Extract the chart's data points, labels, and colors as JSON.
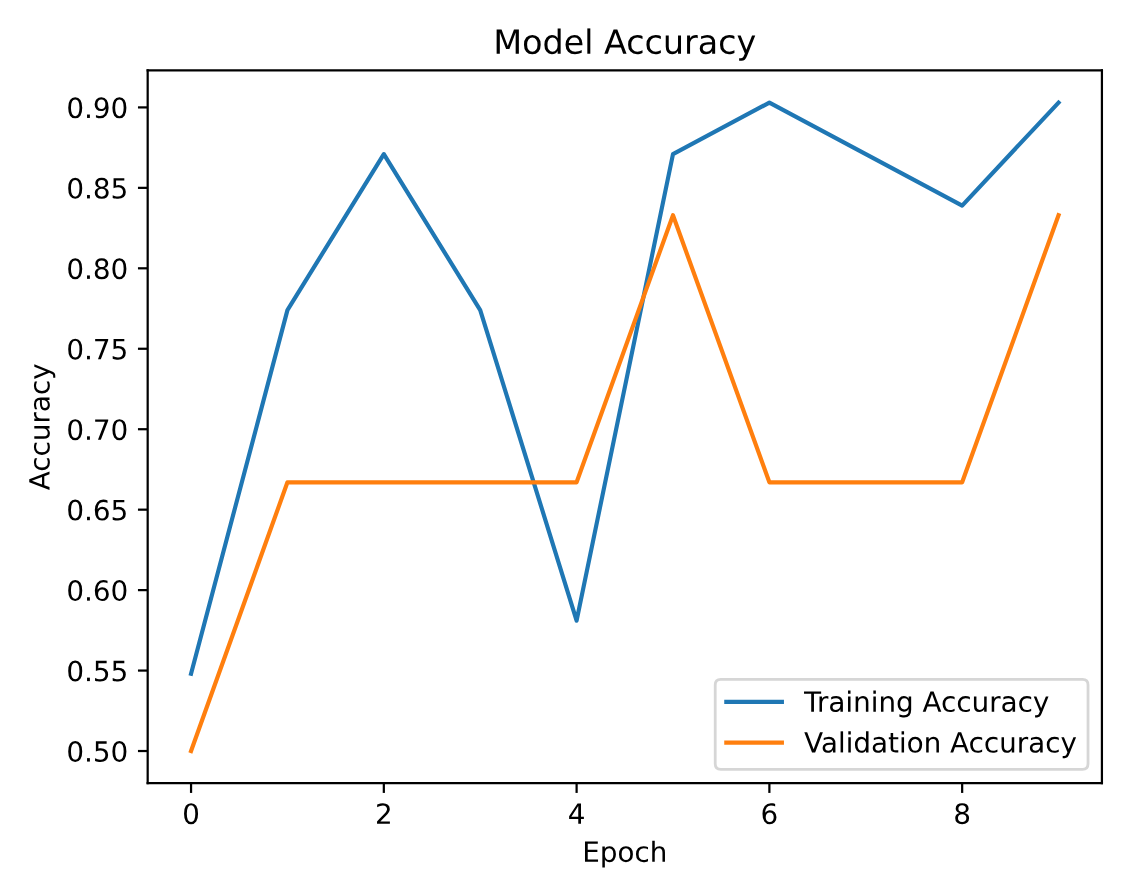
{
  "chart_data": {
    "type": "line",
    "title": "Model Accuracy",
    "xlabel": "Epoch",
    "ylabel": "Accuracy",
    "x": [
      0,
      1,
      2,
      3,
      4,
      5,
      6,
      7,
      8,
      9
    ],
    "series": [
      {
        "name": "Training Accuracy",
        "color": "#1f77b4",
        "values": [
          0.548,
          0.774,
          0.871,
          0.774,
          0.581,
          0.871,
          0.903,
          0.871,
          0.839,
          0.903
        ]
      },
      {
        "name": "Validation Accuracy",
        "color": "#ff7f0e",
        "values": [
          0.5,
          0.667,
          0.667,
          0.667,
          0.667,
          0.833,
          0.667,
          0.667,
          0.667,
          0.833
        ]
      }
    ],
    "xlim": [
      -0.45,
      9.45
    ],
    "ylim": [
      0.48,
      0.923
    ],
    "xticks": [
      0,
      2,
      4,
      6,
      8
    ],
    "yticks": [
      {
        "value": 0.5,
        "label": "0.50"
      },
      {
        "value": 0.55,
        "label": "0.55"
      },
      {
        "value": 0.6,
        "label": "0.60"
      },
      {
        "value": 0.65,
        "label": "0.65"
      },
      {
        "value": 0.7,
        "label": "0.70"
      },
      {
        "value": 0.75,
        "label": "0.75"
      },
      {
        "value": 0.8,
        "label": "0.80"
      },
      {
        "value": 0.85,
        "label": "0.85"
      },
      {
        "value": 0.9,
        "label": "0.90"
      }
    ],
    "legend": "lower right",
    "grid": false,
    "marker": "none",
    "line_style": "solid"
  }
}
